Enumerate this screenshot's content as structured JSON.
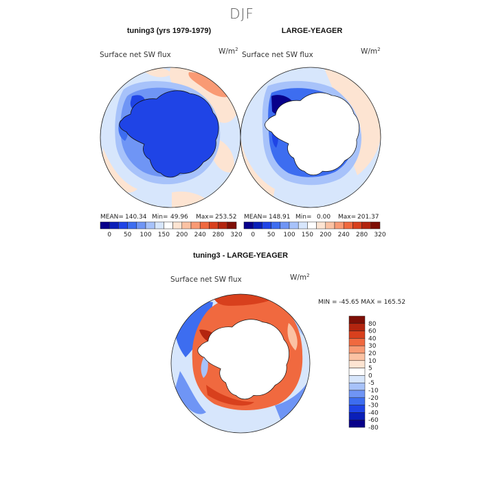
{
  "figure": {
    "season": "DJF",
    "panel_titles": [
      "tuning3 (yrs 1979-1979)",
      "LARGE-YEAGER",
      "tuning3 - LARGE-YEAGER"
    ]
  },
  "panels": [
    {
      "name": "tuning3",
      "variable": "Surface net SW flux",
      "units": "W/m",
      "units_exp": "2",
      "stats": {
        "mean_label": "MEAN=",
        "mean": "140.34",
        "min_label": "Min=",
        "min": "49.96",
        "max_label": "Max=",
        "max": "253.52"
      },
      "land_filled": true
    },
    {
      "name": "LARGE-YEAGER",
      "variable": "Surface net SW flux",
      "units": "W/m",
      "units_exp": "2",
      "stats": {
        "mean_label": "MEAN=",
        "mean": "148.91",
        "min_label": "Min=",
        "min": "0.00",
        "max_label": "Max=",
        "max": "201.37"
      },
      "land_filled": false
    },
    {
      "name": "difference",
      "variable": "Surface net SW flux",
      "units": "W/m",
      "units_exp": "2",
      "stats_text": "MIN = -45.65  MAX = 165.52",
      "land_filled": false
    }
  ],
  "colorbar_abs": {
    "tick_labels": [
      "0",
      "50",
      "100",
      "150",
      "200",
      "240",
      "280",
      "320"
    ],
    "colors": [
      "#08008a",
      "#0a1fb8",
      "#1f44e6",
      "#3d6df0",
      "#6f95f5",
      "#a7c2fa",
      "#d7e6fc",
      "#ffffff",
      "#fde4d2",
      "#fbc2a3",
      "#f99a74",
      "#f0693f",
      "#d8401d",
      "#b3250f",
      "#7e0f06"
    ]
  },
  "colorbar_diff": {
    "tick_labels": [
      "80",
      "60",
      "40",
      "30",
      "20",
      "10",
      "5",
      "0",
      "-5",
      "-10",
      "-20",
      "-30",
      "-40",
      "-60",
      "-80"
    ],
    "colors": [
      "#7e0f06",
      "#b3250f",
      "#d8401d",
      "#f0693f",
      "#f99a74",
      "#fbc2a3",
      "#fde4d2",
      "#ffffff",
      "#d7e6fc",
      "#a7c2fa",
      "#6f95f5",
      "#3d6df0",
      "#1f44e6",
      "#0a1fb8",
      "#08008a"
    ]
  },
  "chart_data": {
    "type": "heatmap",
    "projection": "south polar stereographic",
    "description_visible": "Three polar maps of Surface net SW flux (DJF)",
    "panels": [
      {
        "title": "tuning3 (yrs 1979-1979)",
        "mean": 140.34,
        "min": 49.96,
        "max": 253.52,
        "units": "W/m2"
      },
      {
        "title": "LARGE-YEAGER",
        "mean": 148.91,
        "min": 0.0,
        "max": 201.37,
        "units": "W/m2"
      },
      {
        "title": "tuning3 - LARGE-YEAGER",
        "min": -45.65,
        "max": 165.52,
        "units": "W/m2"
      }
    ],
    "colorbar_abs_levels": [
      0,
      50,
      100,
      150,
      200,
      240,
      280,
      320
    ],
    "colorbar_diff_levels": [
      -80,
      -60,
      -40,
      -30,
      -20,
      -10,
      -5,
      0,
      5,
      10,
      20,
      30,
      40,
      60,
      80
    ]
  }
}
